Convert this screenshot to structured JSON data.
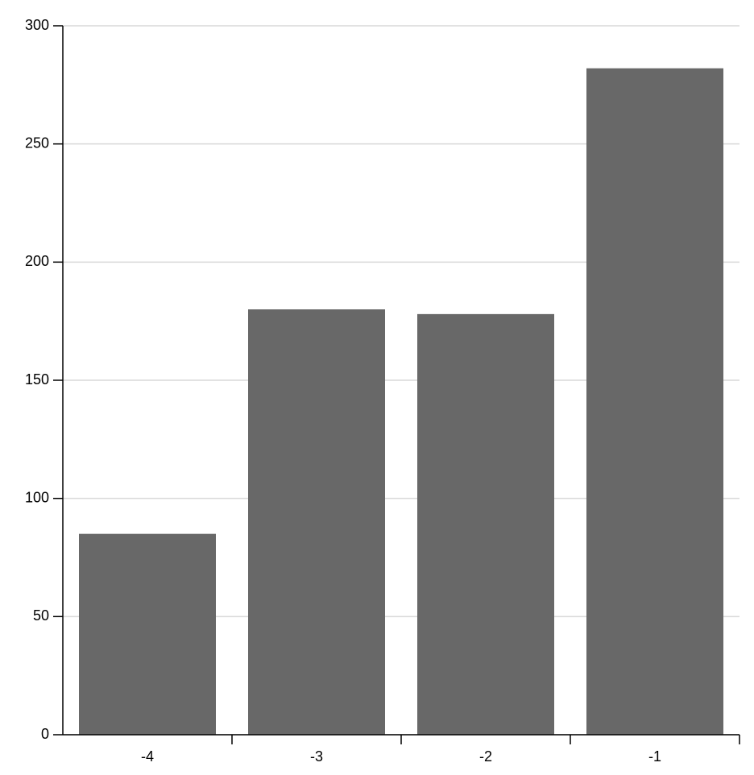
{
  "chart_data": {
    "type": "bar",
    "categories": [
      "-4",
      "-3",
      "-2",
      "-1"
    ],
    "values": [
      85,
      180,
      178,
      282
    ],
    "color": "#686868",
    "ylim": [
      0,
      300
    ],
    "yticks": [
      0,
      50,
      100,
      150,
      200,
      250,
      300
    ],
    "grid": true
  }
}
